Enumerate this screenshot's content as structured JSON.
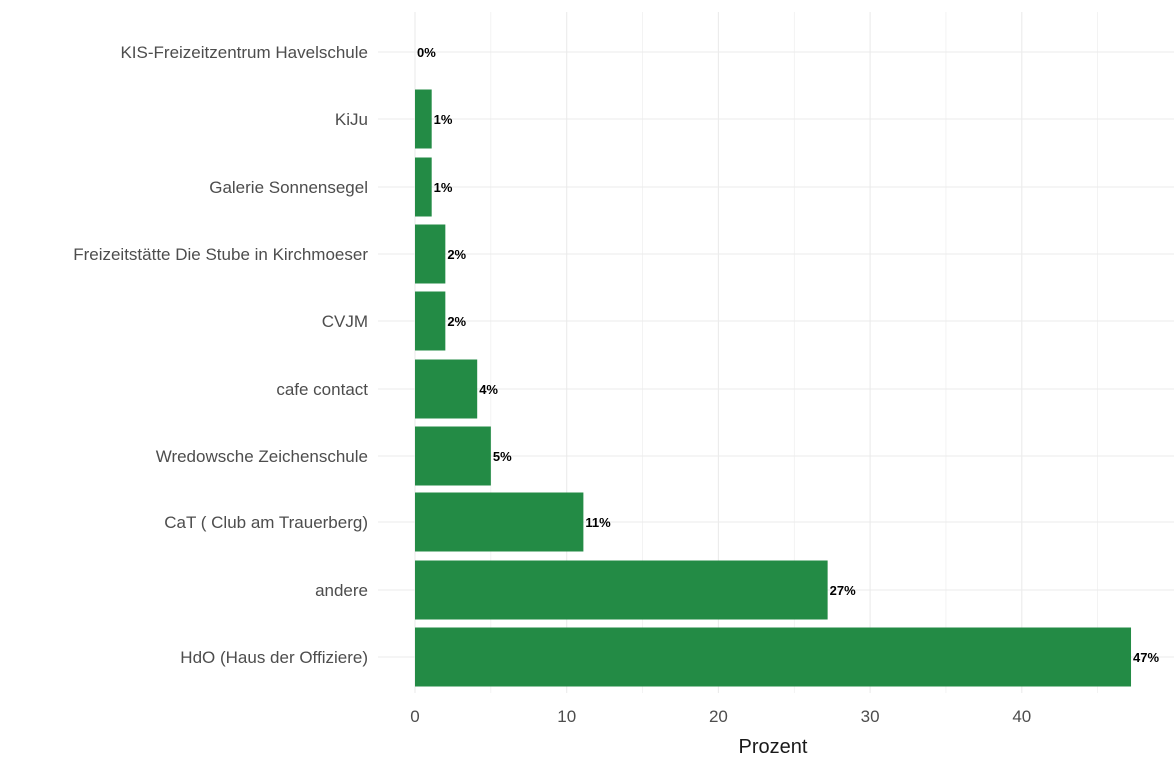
{
  "chart_data": {
    "type": "bar",
    "orientation": "horizontal",
    "categories": [
      "HdO (Haus der Offiziere)",
      "andere",
      "CaT ( Club am Trauerberg)",
      "Wredowsche Zeichenschule",
      "cafe contact",
      "CVJM",
      "Freizeitstätte Die Stube in Kirchmoeser",
      "Galerie Sonnensegel",
      "KiJu",
      "KIS-Freizeitzentrum Havelschule"
    ],
    "values": [
      47.2,
      27.2,
      11.1,
      5.0,
      4.1,
      2.0,
      2.0,
      1.1,
      1.1,
      0.0
    ],
    "value_labels": [
      "47%",
      "27%",
      "11%",
      "5%",
      "4%",
      "2%",
      "2%",
      "1%",
      "1%",
      "0%"
    ],
    "title": "",
    "xlabel": "Prozent",
    "ylabel": "",
    "xlim": [
      0,
      49
    ],
    "xticks": [
      0,
      10,
      20,
      30,
      40
    ],
    "xtick_labels": [
      "0",
      "10",
      "20",
      "30",
      "40"
    ],
    "grid": true,
    "bar_color": "#238b45",
    "grid_color": "#ebebeb"
  }
}
